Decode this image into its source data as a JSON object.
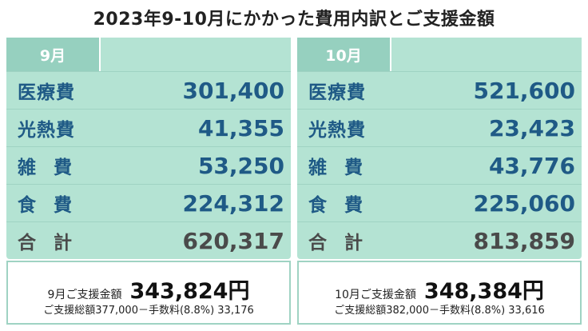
{
  "title": "2023年9-10月にかかった費用内訳とご支援金額",
  "months": [
    {
      "month": "9月",
      "rows": [
        {
          "label": "医療費",
          "value": "301,400"
        },
        {
          "label": "光熱費",
          "value": "41,355"
        },
        {
          "label": "雑費",
          "value": "53,250"
        },
        {
          "label": "食費",
          "value": "224,312"
        },
        {
          "label": "合計",
          "value": "620,317"
        }
      ],
      "support_label": "9月ご支援金額",
      "support_amount": "343,824円",
      "support_detail": "ご支援総額377,000－手数料(8.8%) 33,176"
    },
    {
      "month": "10月",
      "rows": [
        {
          "label": "医療費",
          "value": "521,600"
        },
        {
          "label": "光熱費",
          "value": "23,423"
        },
        {
          "label": "雑費",
          "value": "43,776"
        },
        {
          "label": "食費",
          "value": "225,060"
        },
        {
          "label": "合計",
          "value": "813,859"
        }
      ],
      "support_label": "10月ご支援金額",
      "support_amount": "348,384円",
      "support_detail": "ご支援総額382,000－手数料(8.8%) 33,616"
    }
  ]
}
